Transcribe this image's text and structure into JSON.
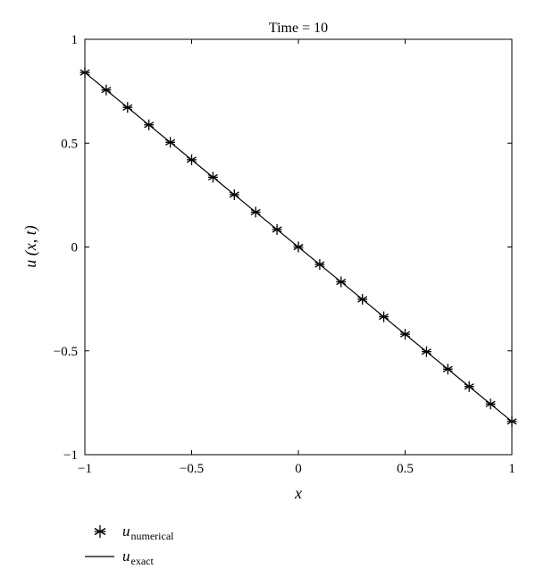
{
  "chart_data": {
    "type": "line",
    "title": "Time = 10",
    "xlabel": "x",
    "ylabel": "u (x, t)",
    "xlim": [
      -1,
      1
    ],
    "ylim": [
      -1,
      1
    ],
    "xticks": [
      "−1",
      "−0.5",
      "0",
      "0.5",
      "1"
    ],
    "xtick_values": [
      -1,
      -0.5,
      0,
      0.5,
      1
    ],
    "yticks": [
      "−1",
      "−0.5",
      "0",
      "0.5",
      "1"
    ],
    "ytick_values": [
      -1,
      -0.5,
      0,
      0.5,
      1
    ],
    "grid": false,
    "legend_position": "bottom-left outside",
    "series": [
      {
        "name": "numerical",
        "legend_base": "u",
        "legend_sub": "numerical",
        "style": "markers-asterisk",
        "x": [
          -1,
          -0.9,
          -0.8,
          -0.7,
          -0.6,
          -0.5,
          -0.4,
          -0.3,
          -0.2,
          -0.1,
          0,
          0.1,
          0.2,
          0.3,
          0.4,
          0.5,
          0.6,
          0.7,
          0.8,
          0.9,
          1
        ],
        "y": [
          0.84,
          0.756,
          0.672,
          0.588,
          0.504,
          0.42,
          0.336,
          0.252,
          0.168,
          0.084,
          0,
          -0.084,
          -0.168,
          -0.252,
          -0.336,
          -0.42,
          -0.504,
          -0.588,
          -0.672,
          -0.756,
          -0.84
        ]
      },
      {
        "name": "exact",
        "legend_base": "u",
        "legend_sub": "exact",
        "style": "solid-line",
        "x": [
          -1,
          1
        ],
        "y": [
          0.84,
          -0.84
        ]
      }
    ]
  }
}
